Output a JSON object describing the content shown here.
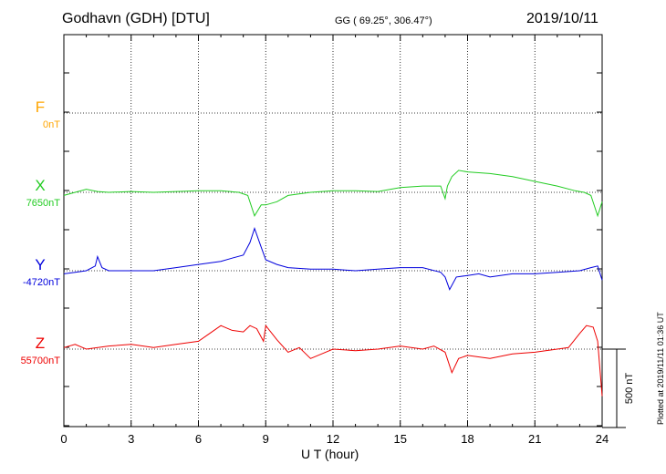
{
  "header": {
    "station": "Godhavn (GDH)  [DTU]",
    "coords": "GG ( 69.25°, 306.47°)",
    "date": "2019/10/11"
  },
  "components": [
    {
      "letter": "F",
      "baseline": "0nT",
      "color": "#ffa500"
    },
    {
      "letter": "X",
      "baseline": "7650nT",
      "color": "#22cc22"
    },
    {
      "letter": "Y",
      "baseline": "-4720nT",
      "color": "#0000dd"
    },
    {
      "letter": "Z",
      "baseline": "55700nT",
      "color": "#ee0000"
    }
  ],
  "scale_bar_label": "500 nT",
  "plotted_note": "Plotted at 2019/11/11 01:36 UT",
  "chart_data": {
    "type": "line",
    "xlabel": "U T (hour)",
    "xlim": [
      0,
      24
    ],
    "x_ticks": [
      "0",
      "3",
      "6",
      "9",
      "12",
      "15",
      "18",
      "21",
      "24"
    ],
    "y_unit": "nT",
    "scale_bar_nT": 500,
    "series": [
      {
        "name": "X",
        "baseline_nT": 7650,
        "color": "#22cc22",
        "x": [
          0,
          0.5,
          1,
          1.5,
          2,
          3,
          4,
          5,
          6,
          7,
          7.8,
          8.2,
          8.5,
          8.8,
          9,
          9.5,
          10,
          11,
          12,
          13,
          14,
          15,
          16,
          16.8,
          17,
          17.1,
          17.3,
          17.6,
          18,
          19,
          20,
          21,
          22,
          22.8,
          23.2,
          23.5,
          23.8,
          24
        ],
        "y": [
          -20,
          0,
          20,
          5,
          0,
          5,
          0,
          5,
          10,
          10,
          0,
          -20,
          -150,
          -80,
          -80,
          -60,
          -20,
          0,
          10,
          10,
          5,
          30,
          40,
          40,
          -40,
          40,
          100,
          140,
          130,
          120,
          100,
          70,
          40,
          10,
          0,
          -20,
          -150,
          -60
        ]
      },
      {
        "name": "Y",
        "baseline_nT": -4720,
        "color": "#0000dd",
        "x": [
          0,
          0.5,
          1,
          1.4,
          1.5,
          1.7,
          2,
          3,
          4,
          5,
          6,
          7,
          7.5,
          8,
          8.3,
          8.5,
          8.8,
          9,
          9.5,
          10,
          11,
          12,
          13,
          14,
          15,
          16,
          16.8,
          17,
          17.2,
          17.5,
          18,
          18.5,
          19,
          20,
          21,
          22,
          23,
          23.5,
          23.8,
          24
        ],
        "y": [
          -20,
          -10,
          0,
          30,
          90,
          20,
          0,
          0,
          0,
          20,
          40,
          60,
          80,
          100,
          180,
          270,
          150,
          70,
          40,
          20,
          10,
          10,
          0,
          10,
          20,
          20,
          -10,
          -40,
          -120,
          -40,
          -30,
          -20,
          -40,
          -20,
          -20,
          -10,
          0,
          20,
          30,
          -60
        ]
      },
      {
        "name": "Z",
        "baseline_nT": 55700,
        "color": "#ee0000",
        "x": [
          0,
          0.5,
          1,
          2,
          3,
          4,
          5,
          6,
          6.5,
          7,
          7.5,
          8,
          8.3,
          8.6,
          8.9,
          9,
          9.5,
          10,
          10.5,
          11,
          11.5,
          12,
          13,
          14,
          15,
          16,
          16.5,
          17,
          17.3,
          17.6,
          18,
          19,
          20,
          21,
          22,
          22.5,
          23,
          23.3,
          23.6,
          23.8,
          24
        ],
        "y": [
          10,
          30,
          0,
          20,
          30,
          10,
          30,
          50,
          100,
          150,
          120,
          110,
          150,
          130,
          50,
          150,
          60,
          -20,
          10,
          -60,
          -30,
          0,
          -10,
          0,
          20,
          0,
          20,
          -20,
          -150,
          -60,
          -40,
          -60,
          -30,
          -20,
          0,
          10,
          100,
          150,
          140,
          50,
          -300
        ]
      }
    ]
  }
}
